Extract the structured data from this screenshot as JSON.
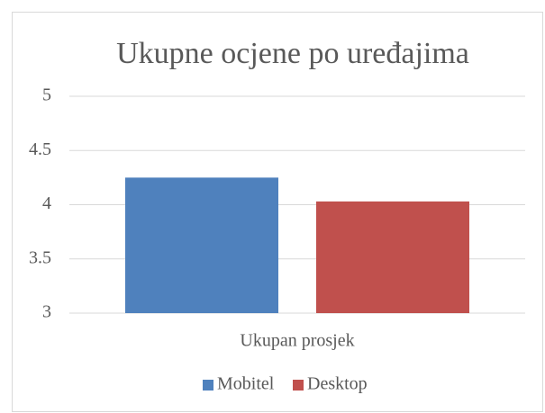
{
  "chart_data": {
    "type": "bar",
    "title": "Ukupne ocjene po uređajima",
    "categories": [
      "Ukupan prosjek"
    ],
    "series": [
      {
        "name": "Mobitel",
        "color": "#4f81bd",
        "values": [
          4.25
        ]
      },
      {
        "name": "Desktop",
        "color": "#c0504d",
        "values": [
          4.03
        ]
      }
    ],
    "ylim": [
      3,
      5
    ],
    "yticks": [
      3,
      3.5,
      4,
      4.5,
      5
    ],
    "grid": true,
    "legend": "bottom"
  }
}
